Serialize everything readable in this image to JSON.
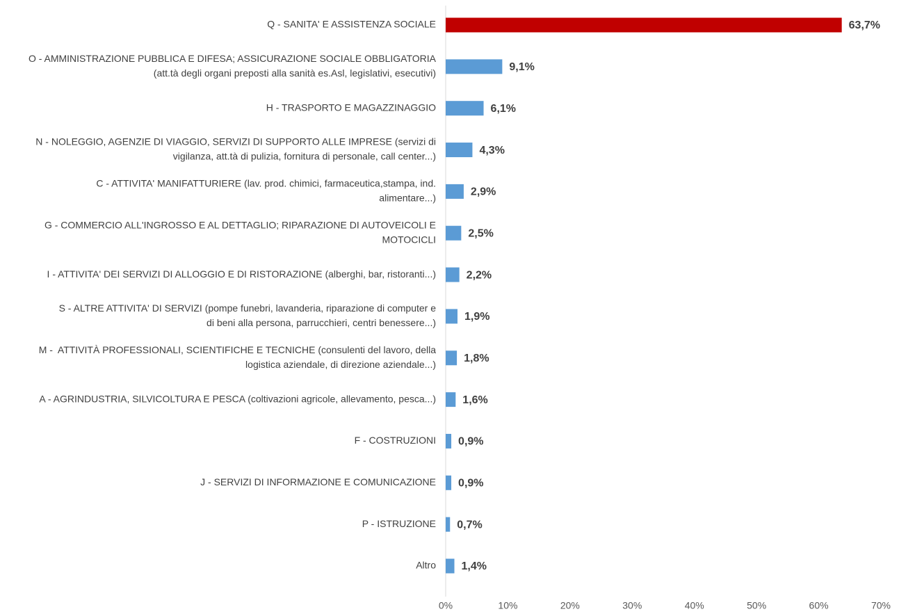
{
  "chart_data": {
    "type": "bar",
    "orientation": "horizontal",
    "categories": [
      [
        "Q - SANITA' E ASSISTENZA SOCIALE"
      ],
      [
        "O - AMMINISTRAZIONE PUBBLICA E DIFESA; ASSICURAZIONE SOCIALE OBBLIGATORIA",
        "(att.tà degli organi preposti alla sanità es.Asl, legislativi, esecutivi)"
      ],
      [
        "H - TRASPORTO E MAGAZZINAGGIO"
      ],
      [
        "N - NOLEGGIO, AGENZIE DI VIAGGIO, SERVIZI DI SUPPORTO ALLE IMPRESE (servizi di",
        "vigilanza, att.tà di pulizia, fornitura di personale, call center...)"
      ],
      [
        "C - ATTIVITA' MANIFATTURIERE (lav. prod. chimici, farmaceutica,stampa, ind.",
        "alimentare...)"
      ],
      [
        "G - COMMERCIO ALL'INGROSSO E AL DETTAGLIO; RIPARAZIONE DI AUTOVEICOLI E",
        "MOTOCICLI"
      ],
      [
        "I - ATTIVITA' DEI SERVIZI DI ALLOGGIO E DI RISTORAZIONE (alberghi, bar, ristoranti...)"
      ],
      [
        "S - ALTRE ATTIVITA' DI SERVIZI (pompe funebri, lavanderia, riparazione di computer e",
        "di beni alla persona, parrucchieri, centri benessere...)"
      ],
      [
        "M -  ATTIVITÀ PROFESSIONALI, SCIENTIFICHE E TECNICHE (consulenti del lavoro, della",
        "logistica aziendale, di direzione aziendale...)"
      ],
      [
        "A - AGRINDUSTRIA, SILVICOLTURA E PESCA (coltivazioni agricole, allevamento, pesca...)"
      ],
      [
        "F - COSTRUZIONI"
      ],
      [
        "J - SERVIZI DI INFORMAZIONE E COMUNICAZIONE"
      ],
      [
        "P - ISTRUZIONE"
      ],
      [
        "Altro"
      ]
    ],
    "values": [
      63.7,
      9.1,
      6.1,
      4.3,
      2.9,
      2.5,
      2.2,
      1.9,
      1.8,
      1.6,
      0.9,
      0.9,
      0.7,
      1.4
    ],
    "value_labels": [
      "63,7%",
      "9,1%",
      "6,1%",
      "4,3%",
      "2,9%",
      "2,5%",
      "2,2%",
      "1,9%",
      "1,8%",
      "1,6%",
      "0,9%",
      "0,9%",
      "0,7%",
      "1,4%"
    ],
    "colors": [
      "#c00000",
      "#5b9bd5",
      "#5b9bd5",
      "#5b9bd5",
      "#5b9bd5",
      "#5b9bd5",
      "#5b9bd5",
      "#5b9bd5",
      "#5b9bd5",
      "#5b9bd5",
      "#5b9bd5",
      "#5b9bd5",
      "#5b9bd5",
      "#5b9bd5"
    ],
    "xlim": [
      0,
      70
    ],
    "xticks": [
      {
        "value": 0,
        "label": "0%"
      },
      {
        "value": 10,
        "label": "10%"
      },
      {
        "value": 20,
        "label": "20%"
      },
      {
        "value": 30,
        "label": "30%"
      },
      {
        "value": 40,
        "label": "40%"
      },
      {
        "value": 50,
        "label": "50%"
      },
      {
        "value": 60,
        "label": "60%"
      },
      {
        "value": 70,
        "label": "70%"
      }
    ],
    "grid": false
  }
}
